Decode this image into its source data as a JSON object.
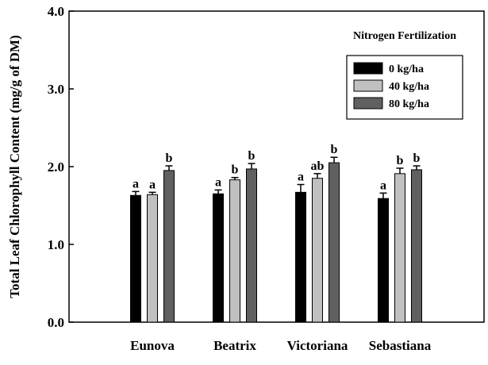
{
  "chart_data": {
    "type": "bar",
    "title": "",
    "xlabel": "",
    "ylabel": "Total Leaf Chlorophyll Content (mg/g of DM)",
    "ylim": [
      0,
      4
    ],
    "yticks": [
      "0.0",
      "1.0",
      "2.0",
      "3.0",
      "4.0"
    ],
    "categories": [
      "Eunova",
      "Beatrix",
      "Victoriana",
      "Sebastiana"
    ],
    "legend": {
      "title": "Nitrogen Fertilization",
      "placement": "top-right"
    },
    "series": [
      {
        "name": "0 kg/ha",
        "color": "#000000",
        "values": [
          1.63,
          1.65,
          1.67,
          1.59
        ],
        "errors": [
          0.05,
          0.05,
          0.1,
          0.07
        ],
        "labels": [
          "a",
          "a",
          "a",
          "a"
        ]
      },
      {
        "name": "40 kg/ha",
        "color": "#c0c0c0",
        "values": [
          1.64,
          1.83,
          1.85,
          1.91
        ],
        "errors": [
          0.03,
          0.03,
          0.06,
          0.07
        ],
        "labels": [
          "a",
          "b",
          "ab",
          "b"
        ]
      },
      {
        "name": "80 kg/ha",
        "color": "#606060",
        "values": [
          1.95,
          1.97,
          2.05,
          1.96
        ],
        "errors": [
          0.06,
          0.07,
          0.07,
          0.05
        ],
        "labels": [
          "b",
          "b",
          "b",
          "b"
        ]
      }
    ]
  }
}
